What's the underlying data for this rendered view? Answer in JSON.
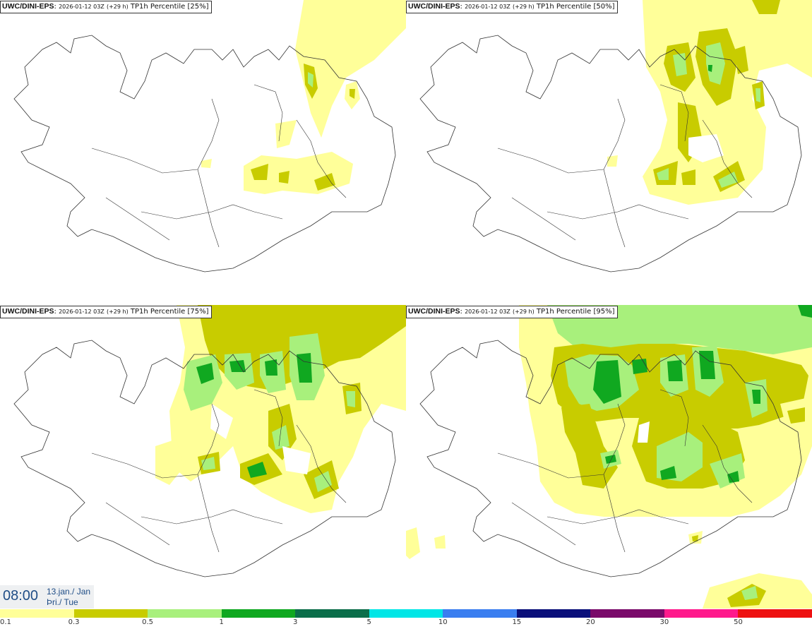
{
  "panels": [
    {
      "source": "UWC/DINI-EPS",
      "run": "2026-01-12 03Z",
      "lead": "(+29 h)",
      "field": "TP1h Percentile",
      "percentile": "[25%]"
    },
    {
      "source": "UWC/DINI-EPS",
      "run": "2026-01-12 03Z",
      "lead": "(+29 h)",
      "field": "TP1h Percentile",
      "percentile": "[50%]"
    },
    {
      "source": "UWC/DINI-EPS",
      "run": "2026-01-12 03Z",
      "lead": "(+29 h)",
      "field": "TP1h Percentile",
      "percentile": "[75%]"
    },
    {
      "source": "UWC/DINI-EPS",
      "run": "2026-01-12 03Z",
      "lead": "(+29 h)",
      "field": "TP1h Percentile",
      "percentile": "[95%]"
    }
  ],
  "valid_time": {
    "time": "08:00",
    "date": "13.jan./ Jan",
    "weekday": "Þri./ Tue"
  },
  "legend": {
    "thresholds": [
      "0.1",
      "0.3",
      "0.5",
      "1",
      "3",
      "5",
      "10",
      "15",
      "20",
      "30",
      "50"
    ],
    "colors": [
      "#ffff99",
      "#c8cc00",
      "#a8f07c",
      "#10a820",
      "#0b6e4a",
      "#00e6e6",
      "#3a7ef0",
      "#0a0f7a",
      "#7a0a6a",
      "#ff1a8c",
      "#ee1111"
    ]
  },
  "colors": {
    "light": "#ffff99",
    "olive": "#c8cc00",
    "lightgreen": "#a8f07c",
    "green": "#10a820",
    "darkgreen": "#0b6e4a"
  }
}
